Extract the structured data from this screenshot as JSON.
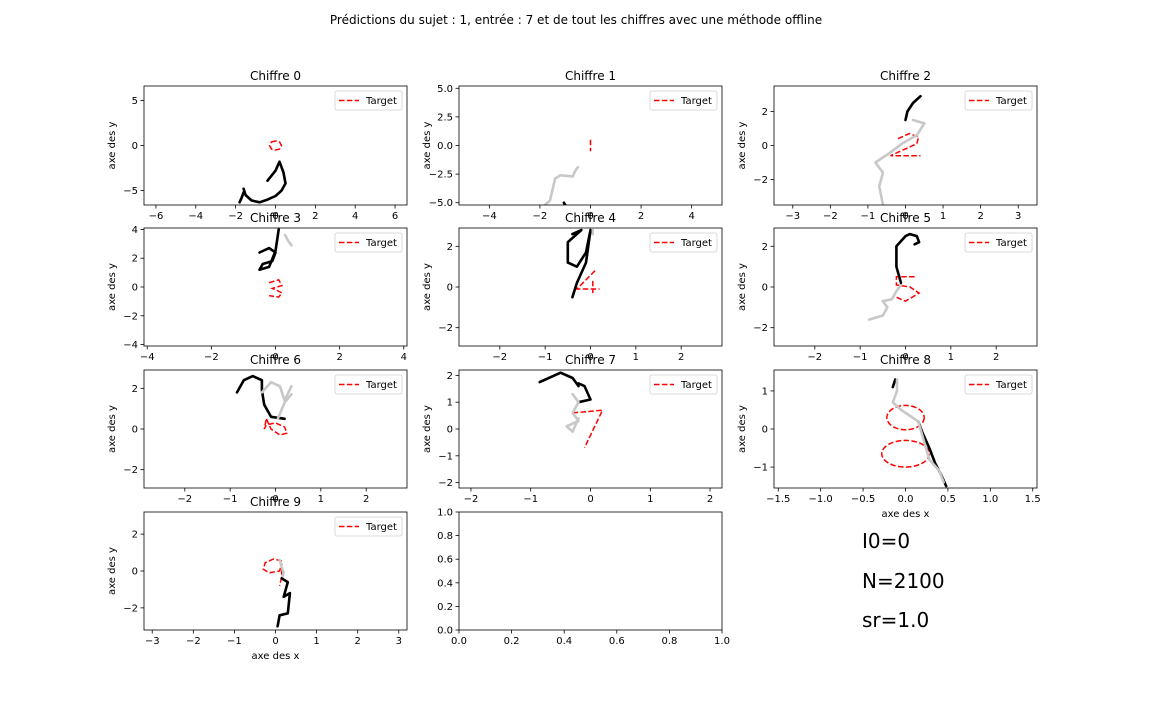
{
  "figure": {
    "suptitle": "Prédictions du sujet : 1, entrée : 7 et de tout les chiffres avec une méthode offline",
    "legend_label": "Target",
    "colors": {
      "target": "#ff0000",
      "black_trace": "#000000",
      "gray_trace": "#c8c8c8"
    },
    "stats": {
      "i0": "I0=0",
      "n": "N=2100",
      "sr": "sr=1.0"
    }
  },
  "chart_data": [
    {
      "type": "line",
      "title": "Chiffre 0",
      "xlabel": "",
      "ylabel": "axe des y",
      "xlim": [
        -6.6,
        6.6
      ],
      "ylim": [
        -6.6,
        6.6
      ],
      "xticks": [
        -6,
        -4,
        -2,
        0,
        2,
        4,
        6
      ],
      "yticks": [
        -5,
        0,
        5
      ],
      "series": [
        {
          "name": "Target",
          "style": "target",
          "x": [
            0,
            -0.2,
            -0.3,
            -0.2,
            0,
            0.2,
            0.3,
            0.2,
            0
          ],
          "y": [
            0.5,
            0.4,
            0,
            -0.4,
            -0.5,
            -0.4,
            0,
            0.4,
            0.5
          ]
        },
        {
          "style": "black",
          "x": [
            -0.4,
            0,
            0.2,
            0.4,
            0.5,
            0.3,
            0,
            -0.4,
            -0.8,
            -1.2,
            -1.5,
            -1.6
          ],
          "y": [
            -3.9,
            -2.8,
            -1.8,
            -3.0,
            -4.2,
            -5.0,
            -5.6,
            -6.0,
            -6.3,
            -6.1,
            -5.5,
            -4.8
          ]
        },
        {
          "style": "black",
          "x": [
            -1.6,
            -1.7,
            -1.8
          ],
          "y": [
            -5.2,
            -5.8,
            -6.3
          ]
        }
      ]
    },
    {
      "type": "line",
      "title": "Chiffre 1",
      "xlabel": "",
      "ylabel": "axe des y",
      "xlim": [
        -5.2,
        5.2
      ],
      "ylim": [
        -5.2,
        5.2
      ],
      "xticks": [
        -4,
        -2,
        0,
        2,
        4
      ],
      "yticks": [
        -5.0,
        -2.5,
        0.0,
        2.5,
        5.0
      ],
      "series": [
        {
          "name": "Target",
          "style": "target",
          "x": [
            0,
            0
          ],
          "y": [
            0.5,
            -0.5
          ]
        },
        {
          "style": "gray",
          "x": [
            -1.8,
            -1.6,
            -1.4,
            -1.2,
            -0.7,
            -0.6,
            -0.5
          ],
          "y": [
            -5.2,
            -4.8,
            -2.9,
            -2.6,
            -2.7,
            -2.2,
            -1.9
          ]
        },
        {
          "style": "black",
          "x": [
            -1.05,
            -1.0,
            -0.9
          ],
          "y": [
            -5.0,
            -5.2,
            -5.4
          ]
        }
      ]
    },
    {
      "type": "line",
      "title": "Chiffre 2",
      "xlabel": "",
      "ylabel": "axe des y",
      "xlim": [
        -3.5,
        3.5
      ],
      "ylim": [
        -3.5,
        3.5
      ],
      "xticks": [
        -3,
        -2,
        -1,
        0,
        1,
        2,
        3
      ],
      "yticks": [
        -2,
        0,
        2
      ],
      "series": [
        {
          "name": "Target",
          "style": "target",
          "x": [
            -0.2,
            0.1,
            0.35,
            0.3,
            -0.1,
            -0.4,
            0.4
          ],
          "y": [
            0.4,
            0.7,
            0.5,
            0.1,
            -0.3,
            -0.6,
            -0.6
          ]
        },
        {
          "style": "gray",
          "x": [
            -0.6,
            -0.7,
            -0.6,
            -0.8,
            -0.4,
            -0.1,
            0.3,
            0.5,
            0.2
          ],
          "y": [
            -3.5,
            -2.4,
            -1.6,
            -1.0,
            -0.4,
            0.1,
            0.6,
            1.3,
            1.5
          ]
        },
        {
          "style": "black",
          "x": [
            0.0,
            0.05,
            0.2,
            0.4
          ],
          "y": [
            1.5,
            2.0,
            2.5,
            2.9
          ]
        }
      ]
    },
    {
      "type": "line",
      "title": "Chiffre 3",
      "xlabel": "",
      "ylabel": "axe des y",
      "xlim": [
        -4.1,
        4.1
      ],
      "ylim": [
        -4.1,
        4.1
      ],
      "xticks": [
        -4,
        -2,
        0,
        2,
        4
      ],
      "yticks": [
        -4,
        -2,
        0,
        2,
        4
      ],
      "series": [
        {
          "name": "Target",
          "style": "target",
          "x": [
            -0.2,
            0.1,
            0.2,
            -0.1,
            0.2,
            0.1,
            -0.2
          ],
          "y": [
            0.3,
            0.5,
            0.1,
            -0.1,
            -0.4,
            -0.7,
            -0.6
          ]
        },
        {
          "style": "black",
          "x": [
            -0.5,
            -0.2,
            0,
            -0.1,
            -0.4,
            -0.5,
            -0.2,
            0,
            0.1
          ],
          "y": [
            2.4,
            2.7,
            2.4,
            1.8,
            1.6,
            1.2,
            1.4,
            2.5,
            4.0
          ]
        },
        {
          "style": "gray",
          "x": [
            0.3,
            0.4,
            0.5
          ],
          "y": [
            3.6,
            3.2,
            2.9
          ]
        }
      ]
    },
    {
      "type": "line",
      "title": "Chiffre 4",
      "xlabel": "",
      "ylabel": "axe des y",
      "xlim": [
        -2.9,
        2.9
      ],
      "ylim": [
        -2.9,
        2.9
      ],
      "xticks": [
        -2,
        -1,
        0,
        1,
        2
      ],
      "yticks": [
        -2,
        0,
        2
      ],
      "series": [
        {
          "name": "Target",
          "style": "target",
          "x": [
            0.1,
            -0.3,
            0.2
          ],
          "y": [
            0.8,
            -0.1,
            -0.1
          ]
        },
        {
          "name": "Target",
          "style": "target",
          "x": [
            0.05,
            0.05
          ],
          "y": [
            0.3,
            -0.3
          ]
        },
        {
          "style": "black",
          "x": [
            -0.4,
            -0.2,
            -0.5,
            -0.5,
            -0.3,
            -0.1,
            0,
            -0.1,
            -0.3,
            -0.4
          ],
          "y": [
            2.6,
            2.8,
            2.2,
            1.2,
            1.0,
            1.7,
            2.8,
            1.2,
            0.2,
            -0.5
          ]
        },
        {
          "style": "gray",
          "x": [
            0.05,
            0.05
          ],
          "y": [
            2.6,
            2.8
          ]
        }
      ]
    },
    {
      "type": "line",
      "title": "Chiffre 5",
      "xlabel": "",
      "ylabel": "axe des y",
      "xlim": [
        -2.9,
        2.9
      ],
      "ylim": [
        -2.9,
        2.9
      ],
      "xticks": [
        -2,
        -1,
        0,
        1,
        2
      ],
      "yticks": [
        -2,
        0,
        2
      ],
      "series": [
        {
          "name": "Target",
          "style": "target",
          "x": [
            0.2,
            -0.2,
            -0.2,
            0.1,
            0.3,
            0.0,
            -0.2
          ],
          "y": [
            0.5,
            0.5,
            0.1,
            0.0,
            -0.3,
            -0.7,
            -0.5
          ]
        },
        {
          "style": "gray",
          "x": [
            -0.8,
            -0.5,
            -0.4,
            -0.5,
            -0.3,
            -0.2,
            -0.1
          ],
          "y": [
            -1.6,
            -1.4,
            -1.0,
            -0.7,
            -0.6,
            -0.2,
            0.1
          ]
        },
        {
          "style": "black",
          "x": [
            -0.1,
            -0.2,
            -0.2,
            0.0,
            0.1,
            0.25,
            0.3,
            0.2
          ],
          "y": [
            0.2,
            1.0,
            2.0,
            2.5,
            2.6,
            2.5,
            2.2,
            2.1
          ]
        }
      ]
    },
    {
      "type": "line",
      "title": "Chiffre 6",
      "xlabel": "",
      "ylabel": "axe des y",
      "xlim": [
        -2.9,
        2.9
      ],
      "ylim": [
        -2.9,
        2.9
      ],
      "xticks": [
        -2,
        -1,
        0,
        1,
        2
      ],
      "yticks": [
        -2,
        0,
        2
      ],
      "series": [
        {
          "name": "Target",
          "style": "target",
          "x": [
            -0.2,
            -0.1,
            0.1,
            0.25,
            0.2,
            0.0,
            -0.2,
            -0.25,
            -0.2
          ],
          "y": [
            0.5,
            0.0,
            -0.3,
            -0.2,
            0.1,
            0.3,
            0.2,
            0.0,
            0.5
          ]
        },
        {
          "style": "black",
          "x": [
            -0.85,
            -0.7,
            -0.5,
            -0.3,
            -0.3,
            -0.25,
            -0.1,
            0.2
          ],
          "y": [
            1.8,
            2.4,
            2.6,
            2.4,
            1.9,
            1.2,
            0.6,
            0.5
          ]
        },
        {
          "style": "gray",
          "x": [
            -0.3,
            -0.1,
            0.1,
            0.2,
            0.35
          ],
          "y": [
            1.8,
            2.3,
            2.1,
            1.4,
            2.1
          ]
        },
        {
          "style": "gray",
          "x": [
            0.05,
            0.2,
            0.35
          ],
          "y": [
            0.5,
            1.3,
            1.7
          ]
        }
      ]
    },
    {
      "type": "line",
      "title": "Chiffre 7",
      "xlabel": "",
      "ylabel": "axe des y",
      "xlim": [
        -2.2,
        2.2
      ],
      "ylim": [
        -2.2,
        2.2
      ],
      "xticks": [
        -2,
        -1,
        0,
        1,
        2
      ],
      "yticks": [
        -2,
        -1,
        0,
        1,
        2
      ],
      "series": [
        {
          "name": "Target",
          "style": "target",
          "x": [
            -0.3,
            0.2,
            -0.1
          ],
          "y": [
            0.6,
            0.7,
            -0.7
          ]
        },
        {
          "style": "black",
          "x": [
            -0.85,
            -0.5,
            -0.3,
            -0.2
          ],
          "y": [
            1.75,
            2.1,
            1.9,
            1.6
          ]
        },
        {
          "style": "black",
          "x": [
            -0.2,
            -0.1,
            0.0,
            -0.2
          ],
          "y": [
            1.7,
            1.6,
            1.1,
            1.0
          ]
        },
        {
          "style": "gray",
          "x": [
            -0.3,
            -0.2,
            -0.3,
            -0.2,
            -0.4,
            -0.3,
            -0.2
          ],
          "y": [
            1.3,
            1.0,
            0.6,
            0.3,
            0.1,
            -0.1,
            0.4
          ]
        }
      ]
    },
    {
      "type": "line",
      "title": "Chiffre 8",
      "xlabel": "axe des x",
      "ylabel": "axe des y",
      "xlim": [
        -1.55,
        1.55
      ],
      "ylim": [
        -1.55,
        1.55
      ],
      "xticks": [
        -1.5,
        -1.0,
        -0.5,
        0.0,
        0.5,
        1.0,
        1.5
      ],
      "yticks": [
        -1,
        0,
        1
      ],
      "series": [
        {
          "name": "Target",
          "style": "target",
          "ellipse": [
            0.0,
            0.3,
            0.22,
            0.32
          ]
        },
        {
          "name": "Target",
          "style": "target",
          "ellipse": [
            0.0,
            -0.65,
            0.28,
            0.35
          ]
        },
        {
          "style": "black",
          "x": [
            -0.15,
            -0.12
          ],
          "y": [
            1.1,
            1.3
          ]
        },
        {
          "style": "black",
          "x": [
            0.15,
            0.2,
            0.28,
            0.35,
            0.42,
            0.48
          ],
          "y": [
            0.2,
            -0.1,
            -0.5,
            -0.9,
            -1.2,
            -1.5
          ]
        },
        {
          "style": "gray",
          "x": [
            -0.1,
            -0.1,
            -0.15,
            -0.05,
            0.15,
            0.28,
            0.4,
            0.45
          ],
          "y": [
            1.3,
            1.0,
            0.7,
            0.5,
            0.2,
            -0.8,
            -1.1,
            -1.4
          ]
        }
      ]
    },
    {
      "type": "line",
      "title": "Chiffre 9",
      "xlabel": "axe des x",
      "ylabel": "axe des y",
      "xlim": [
        -3.2,
        3.2
      ],
      "ylim": [
        -3.2,
        3.2
      ],
      "xticks": [
        -3,
        -2,
        -1,
        0,
        1,
        2,
        3
      ],
      "yticks": [
        -2,
        0,
        2
      ],
      "series": [
        {
          "name": "Target",
          "style": "target",
          "x": [
            0.15,
            -0.05,
            -0.25,
            -0.3,
            -0.15,
            0.1,
            0.15,
            0.15,
            0.1
          ],
          "y": [
            0.55,
            0.65,
            0.45,
            0.1,
            -0.1,
            0.0,
            0.4,
            -0.3,
            -0.8
          ]
        },
        {
          "style": "gray",
          "x": [
            0.1,
            0.15,
            0.2,
            0.15
          ],
          "y": [
            0.6,
            0.2,
            -0.1,
            -0.4
          ]
        },
        {
          "style": "black",
          "x": [
            0.15,
            0.3,
            0.2,
            0.35,
            0.3,
            0.1,
            0.05
          ],
          "y": [
            -0.4,
            -0.6,
            -1.4,
            -1.2,
            -2.3,
            -2.4,
            -3.0
          ]
        }
      ]
    },
    {
      "type": "line",
      "title": "",
      "xlabel": "",
      "ylabel": "",
      "xlim": [
        0,
        1
      ],
      "ylim": [
        0,
        1
      ],
      "xticks": [
        0.0,
        0.2,
        0.4,
        0.6,
        0.8,
        1.0
      ],
      "yticks": [
        0.0,
        0.2,
        0.4,
        0.6,
        0.8,
        1.0
      ],
      "series": []
    }
  ]
}
